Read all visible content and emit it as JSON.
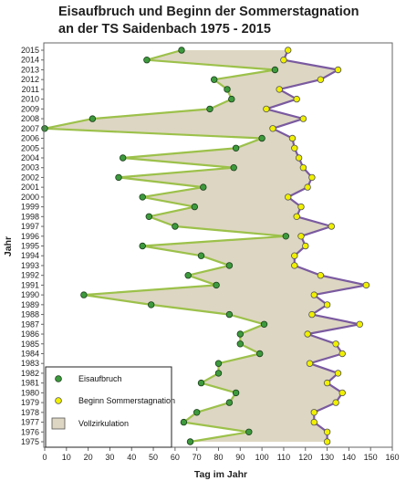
{
  "chart_data": {
    "type": "area",
    "orientation": "horizontal-x, vertical-y (years)",
    "title_line1": "Eisaufbruch und Beginn der Sommerstagnation",
    "title_line2": "an der TS Saidenbach 1975 - 2015",
    "xlabel": "Tag im Jahr",
    "ylabel": "Jahr",
    "xlim": [
      0,
      160
    ],
    "x_ticks": [
      0,
      10,
      20,
      30,
      40,
      50,
      60,
      70,
      80,
      90,
      100,
      110,
      120,
      130,
      140,
      150,
      160
    ],
    "ylim": [
      1975,
      2015
    ],
    "y_ticks": [
      1975,
      1976,
      1977,
      1978,
      1979,
      1980,
      1981,
      1982,
      1983,
      1984,
      1985,
      1986,
      1987,
      1988,
      1989,
      1990,
      1991,
      1992,
      1993,
      1994,
      1995,
      1996,
      1997,
      1998,
      1999,
      2000,
      2001,
      2002,
      2003,
      2004,
      2005,
      2006,
      2007,
      2008,
      2009,
      2010,
      2011,
      2012,
      2013,
      2014,
      2015
    ],
    "grid": false,
    "legend_position": "bottom-left",
    "series": [
      {
        "name": "Eisaufbruch",
        "color": "#3d9a3d",
        "line_color": "#9cc14a",
        "points": [
          {
            "year": 1975,
            "day": 67
          },
          {
            "year": 1976,
            "day": 94
          },
          {
            "year": 1977,
            "day": 64
          },
          {
            "year": 1978,
            "day": 70
          },
          {
            "year": 1979,
            "day": 85
          },
          {
            "year": 1980,
            "day": 88
          },
          {
            "year": 1981,
            "day": 72
          },
          {
            "year": 1982,
            "day": 80
          },
          {
            "year": 1983,
            "day": 80
          },
          {
            "year": 1984,
            "day": 99
          },
          {
            "year": 1985,
            "day": 90
          },
          {
            "year": 1986,
            "day": 90
          },
          {
            "year": 1987,
            "day": 101
          },
          {
            "year": 1988,
            "day": 85
          },
          {
            "year": 1989,
            "day": 49
          },
          {
            "year": 1990,
            "day": 18
          },
          {
            "year": 1991,
            "day": 79
          },
          {
            "year": 1992,
            "day": 66
          },
          {
            "year": 1993,
            "day": 85
          },
          {
            "year": 1994,
            "day": 72
          },
          {
            "year": 1995,
            "day": 45
          },
          {
            "year": 1996,
            "day": 111
          },
          {
            "year": 1997,
            "day": 60
          },
          {
            "year": 1998,
            "day": 48
          },
          {
            "year": 1999,
            "day": 69
          },
          {
            "year": 2000,
            "day": 45
          },
          {
            "year": 2001,
            "day": 73
          },
          {
            "year": 2002,
            "day": 34
          },
          {
            "year": 2003,
            "day": 87
          },
          {
            "year": 2004,
            "day": 36
          },
          {
            "year": 2005,
            "day": 88
          },
          {
            "year": 2006,
            "day": 100
          },
          {
            "year": 2007,
            "day": 0
          },
          {
            "year": 2008,
            "day": 22
          },
          {
            "year": 2009,
            "day": 76
          },
          {
            "year": 2010,
            "day": 86
          },
          {
            "year": 2011,
            "day": 84
          },
          {
            "year": 2012,
            "day": 78
          },
          {
            "year": 2013,
            "day": 106
          },
          {
            "year": 2014,
            "day": 47
          },
          {
            "year": 2015,
            "day": 63
          }
        ]
      },
      {
        "name": "Beginn Sommerstagnation",
        "color": "#f0f000",
        "line_color": "#7a5aa0",
        "points": [
          {
            "year": 1975,
            "day": 130
          },
          {
            "year": 1976,
            "day": 130
          },
          {
            "year": 1977,
            "day": 124
          },
          {
            "year": 1978,
            "day": 124
          },
          {
            "year": 1979,
            "day": 134
          },
          {
            "year": 1980,
            "day": 137
          },
          {
            "year": 1981,
            "day": 130
          },
          {
            "year": 1982,
            "day": 135
          },
          {
            "year": 1983,
            "day": 122
          },
          {
            "year": 1984,
            "day": 137
          },
          {
            "year": 1985,
            "day": 134
          },
          {
            "year": 1986,
            "day": 121
          },
          {
            "year": 1987,
            "day": 145
          },
          {
            "year": 1988,
            "day": 123
          },
          {
            "year": 1989,
            "day": 130
          },
          {
            "year": 1990,
            "day": 124
          },
          {
            "year": 1991,
            "day": 148
          },
          {
            "year": 1992,
            "day": 127
          },
          {
            "year": 1993,
            "day": 115
          },
          {
            "year": 1994,
            "day": 115
          },
          {
            "year": 1995,
            "day": 120
          },
          {
            "year": 1996,
            "day": 118
          },
          {
            "year": 1997,
            "day": 132
          },
          {
            "year": 1998,
            "day": 116
          },
          {
            "year": 1999,
            "day": 118
          },
          {
            "year": 2000,
            "day": 112
          },
          {
            "year": 2001,
            "day": 121
          },
          {
            "year": 2002,
            "day": 123
          },
          {
            "year": 2003,
            "day": 119
          },
          {
            "year": 2004,
            "day": 117
          },
          {
            "year": 2005,
            "day": 115
          },
          {
            "year": 2006,
            "day": 114
          },
          {
            "year": 2007,
            "day": 105
          },
          {
            "year": 2008,
            "day": 119
          },
          {
            "year": 2009,
            "day": 102
          },
          {
            "year": 2010,
            "day": 116
          },
          {
            "year": 2011,
            "day": 108
          },
          {
            "year": 2012,
            "day": 127
          },
          {
            "year": 2013,
            "day": 135
          },
          {
            "year": 2014,
            "day": 110
          },
          {
            "year": 2015,
            "day": 112
          }
        ]
      }
    ],
    "fill": {
      "name": "Vollzirkulation",
      "color": "#ddd6c2"
    }
  }
}
